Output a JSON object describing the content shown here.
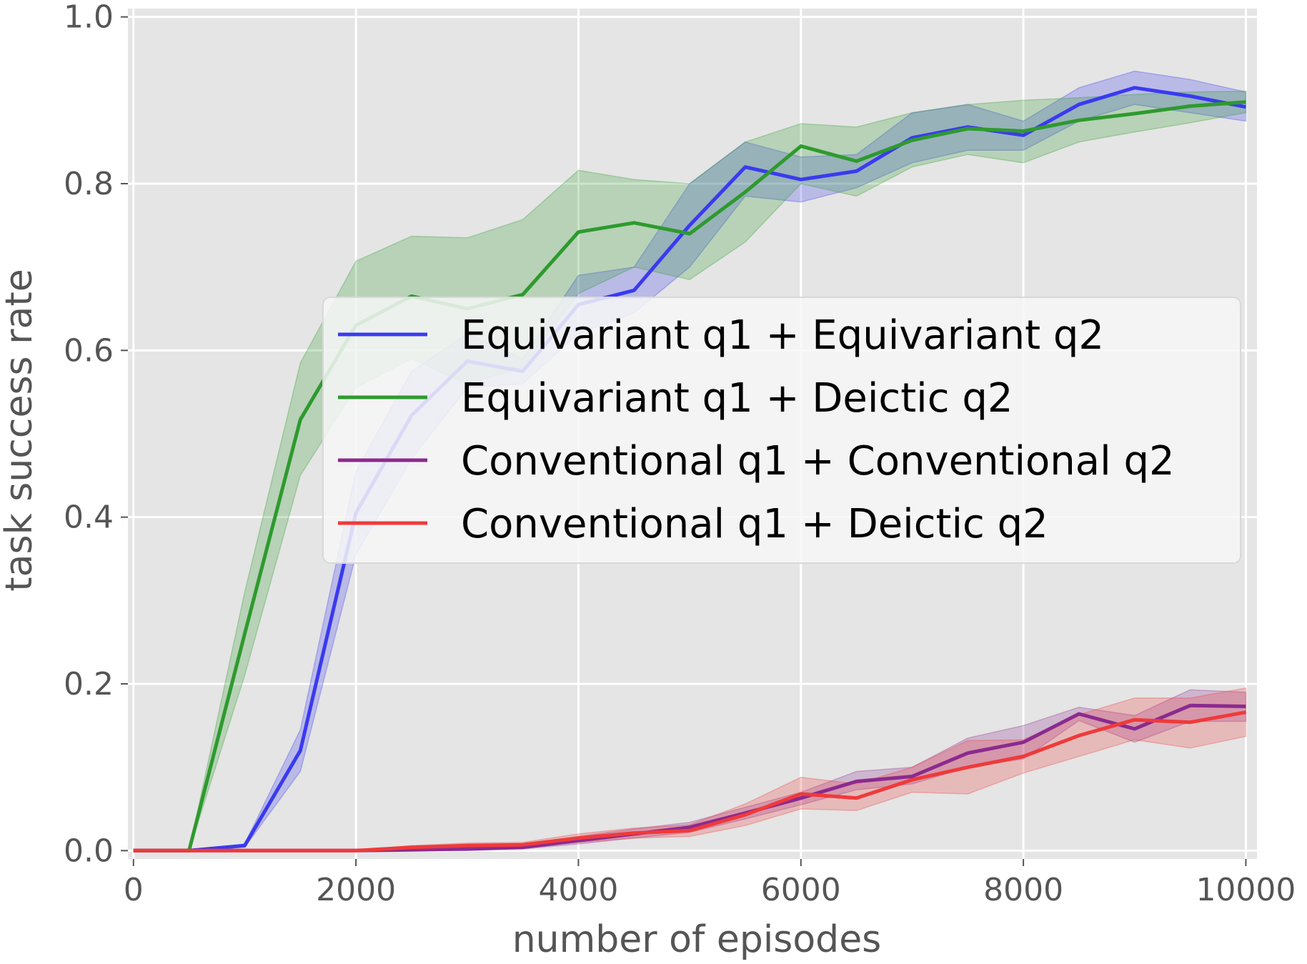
{
  "chart_data": {
    "type": "line",
    "title": "",
    "xlabel": "number of episodes",
    "ylabel": "task success rate",
    "xlim": [
      -50,
      10100
    ],
    "ylim": [
      -0.01,
      1.01
    ],
    "xticks": [
      0,
      2000,
      4000,
      6000,
      8000,
      10000
    ],
    "xtick_labels": [
      "0",
      "2000",
      "4000",
      "6000",
      "8000",
      "10000"
    ],
    "yticks": [
      0.0,
      0.2,
      0.4,
      0.6,
      0.8,
      1.0
    ],
    "ytick_labels": [
      "0.0",
      "0.2",
      "0.4",
      "0.6",
      "0.8",
      "1.0"
    ],
    "grid": true,
    "legend_position": "center-right",
    "x": [
      0,
      500,
      1000,
      1500,
      2000,
      2500,
      3000,
      3500,
      4000,
      4500,
      5000,
      5500,
      6000,
      6500,
      7000,
      7500,
      8000,
      8500,
      9000,
      9500,
      10000
    ],
    "series": [
      {
        "name": "Equivariant q1 + Equivariant q2",
        "color": "#3a3af0",
        "values": [
          0.0,
          0.0,
          0.006,
          0.12,
          0.405,
          0.522,
          0.587,
          0.575,
          0.655,
          0.672,
          0.75,
          0.82,
          0.805,
          0.815,
          0.855,
          0.868,
          0.858,
          0.895,
          0.915,
          0.905,
          0.892
        ],
        "lower": [
          0.0,
          0.0,
          0.004,
          0.095,
          0.355,
          0.47,
          0.555,
          0.56,
          0.62,
          0.645,
          0.7,
          0.785,
          0.778,
          0.795,
          0.825,
          0.84,
          0.84,
          0.875,
          0.895,
          0.885,
          0.875
        ],
        "upper": [
          0.0,
          0.0,
          0.008,
          0.145,
          0.455,
          0.575,
          0.62,
          0.59,
          0.69,
          0.7,
          0.8,
          0.85,
          0.832,
          0.835,
          0.885,
          0.895,
          0.875,
          0.915,
          0.935,
          0.925,
          0.91
        ]
      },
      {
        "name": "Equivariant q1 + Deictic q2",
        "color": "#2e9a2e",
        "values": [
          0.0,
          0.0,
          0.26,
          0.517,
          0.63,
          0.665,
          0.65,
          0.667,
          0.742,
          0.753,
          0.74,
          0.79,
          0.845,
          0.827,
          0.852,
          0.866,
          0.863,
          0.876,
          0.884,
          0.893,
          0.898
        ],
        "lower": [
          0.0,
          0.0,
          0.21,
          0.45,
          0.555,
          0.59,
          0.56,
          0.58,
          0.668,
          0.7,
          0.685,
          0.73,
          0.8,
          0.785,
          0.82,
          0.835,
          0.825,
          0.85,
          0.862,
          0.873,
          0.885
        ],
        "upper": [
          0.0,
          0.0,
          0.31,
          0.585,
          0.707,
          0.737,
          0.735,
          0.757,
          0.816,
          0.805,
          0.8,
          0.85,
          0.872,
          0.868,
          0.885,
          0.895,
          0.9,
          0.903,
          0.907,
          0.91,
          0.911
        ]
      },
      {
        "name": "Conventional q1 + Conventional q2",
        "color": "#8b2a8e",
        "values": [
          0.0,
          0.0,
          0.0,
          0.0,
          0.0,
          0.001,
          0.002,
          0.004,
          0.012,
          0.02,
          0.028,
          0.045,
          0.063,
          0.083,
          0.089,
          0.117,
          0.13,
          0.164,
          0.146,
          0.174,
          0.173
        ],
        "lower": [
          0.0,
          0.0,
          0.0,
          0.0,
          0.0,
          0.0,
          0.0,
          0.002,
          0.008,
          0.015,
          0.022,
          0.038,
          0.055,
          0.073,
          0.08,
          0.1,
          0.11,
          0.156,
          0.13,
          0.155,
          0.155
        ],
        "upper": [
          0.0,
          0.0,
          0.0,
          0.0,
          0.0,
          0.002,
          0.004,
          0.007,
          0.017,
          0.026,
          0.034,
          0.052,
          0.07,
          0.095,
          0.1,
          0.135,
          0.15,
          0.172,
          0.162,
          0.193,
          0.19
        ]
      },
      {
        "name": "Conventional q1 + Deictic q2",
        "color": "#ef3a3a",
        "values": [
          0.0,
          0.0,
          0.0,
          0.0,
          0.0,
          0.004,
          0.006,
          0.007,
          0.015,
          0.021,
          0.024,
          0.043,
          0.068,
          0.063,
          0.085,
          0.1,
          0.113,
          0.138,
          0.157,
          0.154,
          0.166
        ],
        "lower": [
          0.0,
          0.0,
          0.0,
          0.0,
          0.0,
          0.002,
          0.003,
          0.004,
          0.01,
          0.015,
          0.017,
          0.03,
          0.05,
          0.048,
          0.07,
          0.068,
          0.093,
          0.113,
          0.133,
          0.123,
          0.137
        ],
        "upper": [
          0.0,
          0.0,
          0.0,
          0.0,
          0.0,
          0.006,
          0.009,
          0.01,
          0.02,
          0.027,
          0.031,
          0.056,
          0.088,
          0.08,
          0.1,
          0.132,
          0.133,
          0.163,
          0.183,
          0.183,
          0.195
        ]
      }
    ]
  }
}
